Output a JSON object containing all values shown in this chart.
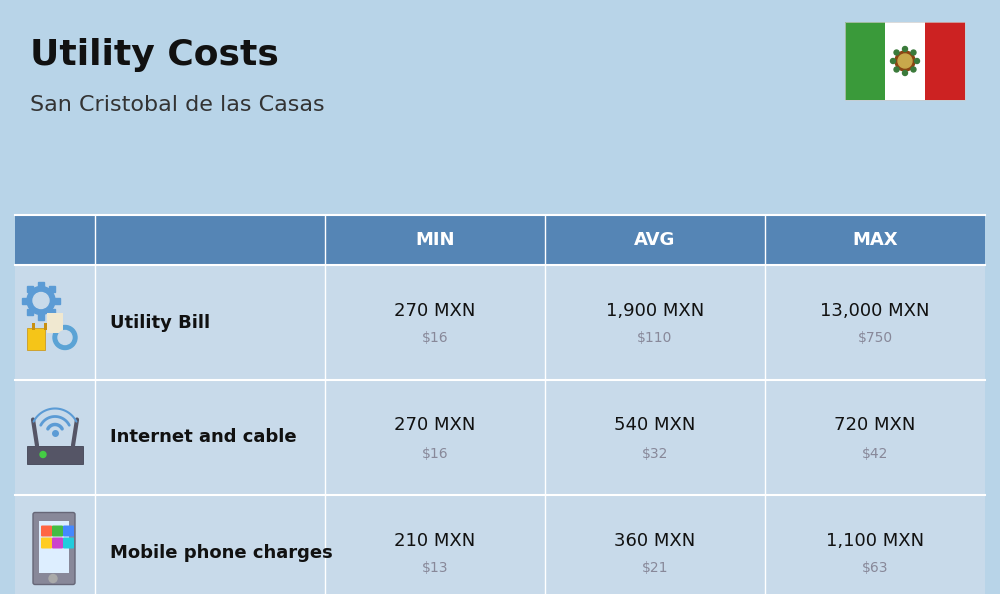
{
  "title": "Utility Costs",
  "subtitle": "San Cristobal de las Casas",
  "background_color": "#b8d4e8",
  "header_bg_color": "#5585b5",
  "header_text_color": "#ffffff",
  "row_bg_color": "#c8daea",
  "cell_text_color": "#111111",
  "usd_text_color": "#888899",
  "col_headers": [
    "MIN",
    "AVG",
    "MAX"
  ],
  "rows": [
    {
      "label": "Utility Bill",
      "min_mxn": "270 MXN",
      "min_usd": "$16",
      "avg_mxn": "1,900 MXN",
      "avg_usd": "$110",
      "max_mxn": "13,000 MXN",
      "max_usd": "$750",
      "icon": "utility"
    },
    {
      "label": "Internet and cable",
      "min_mxn": "270 MXN",
      "min_usd": "$16",
      "avg_mxn": "540 MXN",
      "avg_usd": "$32",
      "max_mxn": "720 MXN",
      "max_usd": "$42",
      "icon": "internet"
    },
    {
      "label": "Mobile phone charges",
      "min_mxn": "210 MXN",
      "min_usd": "$13",
      "avg_mxn": "360 MXN",
      "avg_usd": "$21",
      "max_mxn": "1,100 MXN",
      "max_usd": "$63",
      "icon": "mobile"
    }
  ],
  "flag_green": "#3a9a3a",
  "flag_white": "#ffffff",
  "flag_red": "#cc2222",
  "title_fontsize": 26,
  "subtitle_fontsize": 16,
  "header_fontsize": 13,
  "label_fontsize": 13,
  "value_fontsize": 13,
  "usd_fontsize": 10
}
